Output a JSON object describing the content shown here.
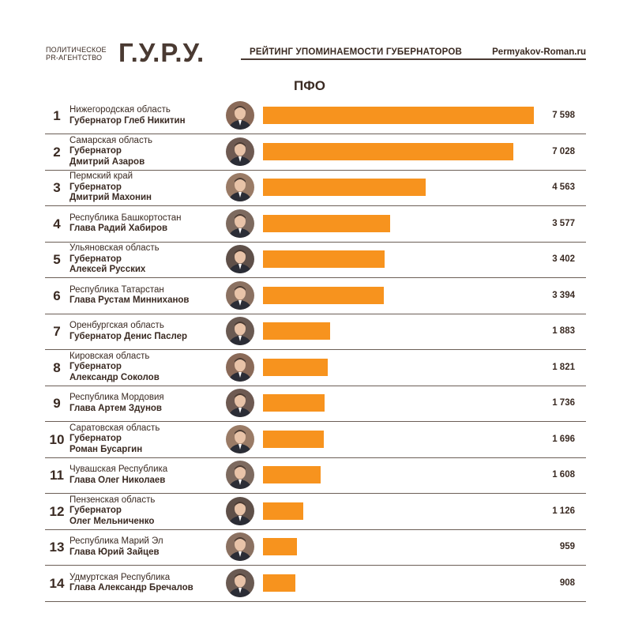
{
  "header": {
    "agency_line1": "ПОЛИТИЧЕСКОЕ",
    "agency_line2": "PR-АГЕНТСТВО",
    "logo": "Г.У.Р.У.",
    "subtitle": "РЕЙТИНГ УПОМИНАЕМОСТИ ГУБЕРНАТОРОВ",
    "site": "Permyakov-Roman.ru"
  },
  "chart_data": {
    "type": "bar",
    "orientation": "horizontal",
    "title": "ПФО",
    "xlim": [
      0,
      7598
    ],
    "rows": [
      {
        "rank": "1",
        "region": "Нижегородская область",
        "official": [
          "Губернатор Глеб Никитин"
        ],
        "value": 7598,
        "label": "7 598"
      },
      {
        "rank": "2",
        "region": "Самарская область",
        "official": [
          "Губернатор",
          "Дмитрий Азаров"
        ],
        "value": 7028,
        "label": "7 028"
      },
      {
        "rank": "3",
        "region": "Пермский край",
        "official": [
          "Губернатор",
          "Дмитрий Махонин"
        ],
        "value": 4563,
        "label": "4 563"
      },
      {
        "rank": "4",
        "region": "Республика Башкортостан",
        "official": [
          "Глава Радий Хабиров"
        ],
        "value": 3577,
        "label": "3 577"
      },
      {
        "rank": "5",
        "region": "Ульяновская область",
        "official": [
          "Губернатор",
          "Алексей Русских"
        ],
        "value": 3402,
        "label": "3 402"
      },
      {
        "rank": "6",
        "region": "Республика Татарстан",
        "official": [
          "Глава Рустам Минниханов"
        ],
        "value": 3394,
        "label": "3 394"
      },
      {
        "rank": "7",
        "region": "Оренбургская область",
        "official": [
          "Губернатор Денис Паслер"
        ],
        "value": 1883,
        "label": "1 883"
      },
      {
        "rank": "8",
        "region": "Кировская область",
        "official": [
          "Губернатор",
          "Александр Соколов"
        ],
        "value": 1821,
        "label": "1 821"
      },
      {
        "rank": "9",
        "region": "Республика Мордовия",
        "official": [
          "Глава Артем Здунов"
        ],
        "value": 1736,
        "label": "1 736"
      },
      {
        "rank": "10",
        "region": "Саратовская область",
        "official": [
          "Губернатор",
          "Роман Бусаргин"
        ],
        "value": 1696,
        "label": "1 696"
      },
      {
        "rank": "11",
        "region": "Чувашская Республика",
        "official": [
          "Глава Олег Николаев"
        ],
        "value": 1608,
        "label": "1 608"
      },
      {
        "rank": "12",
        "region": "Пензенская область",
        "official": [
          "Губернатор",
          "Олег Мельниченко"
        ],
        "value": 1126,
        "label": "1 126"
      },
      {
        "rank": "13",
        "region": "Республика Марий Эл",
        "official": [
          "Глава Юрий Зайцев"
        ],
        "value": 959,
        "label": "959"
      },
      {
        "rank": "14",
        "region": "Удмуртская Республика",
        "official": [
          "Глава Александр Бречалов"
        ],
        "value": 908,
        "label": "908"
      }
    ]
  },
  "colors": {
    "bar": "#f7931e",
    "text": "#3a2a22",
    "divider": "#6b5e56"
  }
}
